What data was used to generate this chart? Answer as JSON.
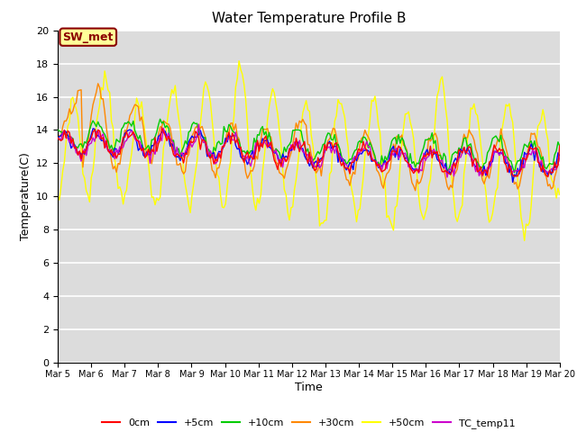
{
  "title": "Water Temperature Profile B",
  "xlabel": "Time",
  "ylabel": "Temperature(C)",
  "ylim": [
    0,
    20
  ],
  "background_color": "#dcdcdc",
  "annotation_text": "SW_met",
  "annotation_color": "#8b0000",
  "annotation_bg": "#ffff99",
  "series_colors": {
    "0cm": "#ff0000",
    "+5cm": "#0000ff",
    "+10cm": "#00cc00",
    "+30cm": "#ff8800",
    "+50cm": "#ffff00",
    "TC_temp11": "#cc00cc"
  },
  "grid_color": "#ffffff",
  "tick_dates": [
    "Mar 5",
    "Mar 6",
    "Mar 7",
    "Mar 8",
    "Mar 9",
    "Mar 10",
    "Mar 11",
    "Mar 12",
    "Mar 13",
    "Mar 14",
    "Mar 15",
    "Mar 16",
    "Mar 17",
    "Mar 18",
    "Mar 19",
    "Mar 20"
  ]
}
